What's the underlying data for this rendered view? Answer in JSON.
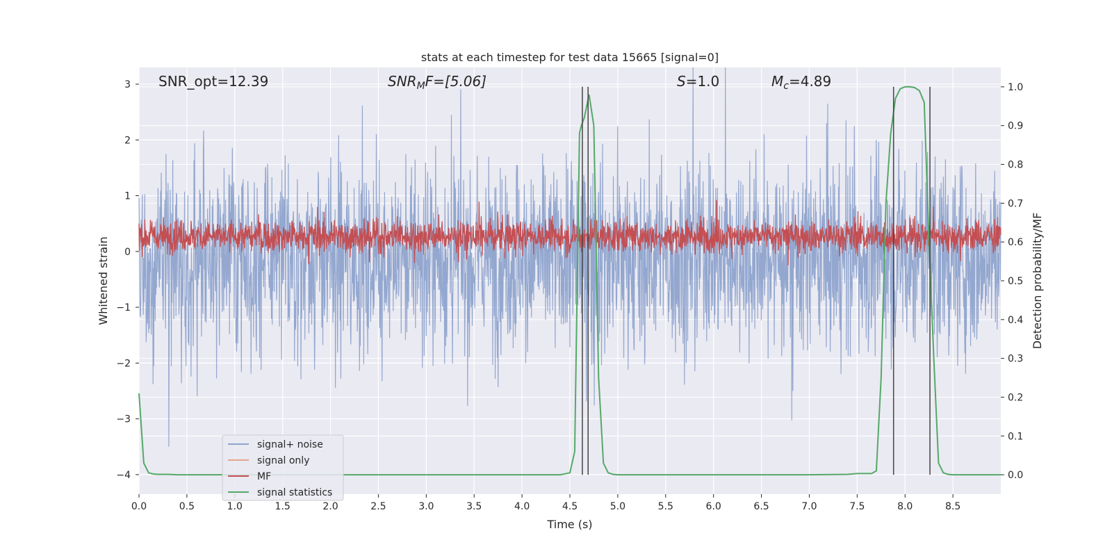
{
  "chart_data": {
    "type": "line",
    "title": "stats at each timestep for test data 15665 [signal=0]",
    "xlabel": "Time (s)",
    "ylabel": "Whitened strain",
    "y2label": "Detection probability/MF",
    "xlim": [
      0.0,
      9.0
    ],
    "ylim": [
      -4.35,
      3.3
    ],
    "y2lim": [
      -0.05,
      1.05
    ],
    "xticks": [
      "0.0",
      "0.5",
      "1.0",
      "1.5",
      "2.0",
      "2.5",
      "3.0",
      "3.5",
      "4.0",
      "4.5",
      "5.0",
      "5.5",
      "6.0",
      "6.5",
      "7.0",
      "7.5",
      "8.0",
      "8.5"
    ],
    "yticks": [
      "3",
      "2",
      "1",
      "0",
      "−1",
      "−2",
      "−3",
      "−4"
    ],
    "y2ticks": [
      "1.0",
      "0.9",
      "0.8",
      "0.7",
      "0.6",
      "0.5",
      "0.4",
      "0.3",
      "0.2",
      "0.1",
      "0.0"
    ],
    "annotations": {
      "snr_opt": "SNR_opt=12.39",
      "snr_mf_base": "SNR",
      "snr_mf_sub": "M",
      "snr_mf_rest": "F=[5.06]",
      "s": "S",
      "s_rest": "=1.0",
      "mc_base": "M",
      "mc_sub": "c",
      "mc_rest": "=4.89"
    },
    "series": [
      {
        "name": "signal+ noise",
        "color": "#8ea3cc",
        "axis": "left",
        "kind": "noise",
        "mean": -0.1,
        "amplitude": 1.45
      },
      {
        "name": "signal only",
        "color": "#e8a48c",
        "axis": "left",
        "kind": "flat",
        "values": []
      },
      {
        "name": "MF",
        "color": "#c44e52",
        "axis": "right",
        "kind": "noise",
        "mean": 0.615,
        "amplitude": 0.035
      },
      {
        "name": "signal statistics",
        "color": "#55a868",
        "axis": "right",
        "kind": "line",
        "x": [
          0.0,
          0.05,
          0.1,
          0.15,
          0.2,
          0.3,
          0.4,
          0.5,
          1.0,
          2.0,
          3.0,
          4.0,
          4.4,
          4.5,
          4.55,
          4.6,
          4.62,
          4.65,
          4.7,
          4.75,
          4.8,
          4.85,
          4.9,
          4.95,
          5.0,
          5.1,
          6.0,
          7.0,
          7.4,
          7.5,
          7.6,
          7.65,
          7.7,
          7.75,
          7.8,
          7.85,
          7.9,
          7.95,
          8.0,
          8.05,
          8.1,
          8.15,
          8.2,
          8.25,
          8.3,
          8.35,
          8.4,
          8.45,
          8.5,
          9.0
        ],
        "y": [
          0.21,
          0.03,
          0.005,
          0.002,
          0.001,
          0.001,
          0.0,
          0.0,
          0.0,
          0.0,
          0.0,
          0.0,
          0.0,
          0.005,
          0.06,
          0.88,
          0.9,
          0.92,
          0.98,
          0.9,
          0.25,
          0.03,
          0.005,
          0.001,
          0.0,
          0.0,
          0.0,
          0.0,
          0.001,
          0.003,
          0.003,
          0.003,
          0.01,
          0.25,
          0.7,
          0.88,
          0.97,
          0.995,
          1.0,
          1.0,
          0.998,
          0.99,
          0.96,
          0.6,
          0.3,
          0.03,
          0.005,
          0.001,
          0.0,
          0.0
        ]
      }
    ],
    "vlines": [
      4.63,
      4.69,
      7.88,
      8.26
    ],
    "vline_color": "#444444",
    "legend_position": "lower-left",
    "grid": true,
    "background": "#eaeaf2"
  }
}
